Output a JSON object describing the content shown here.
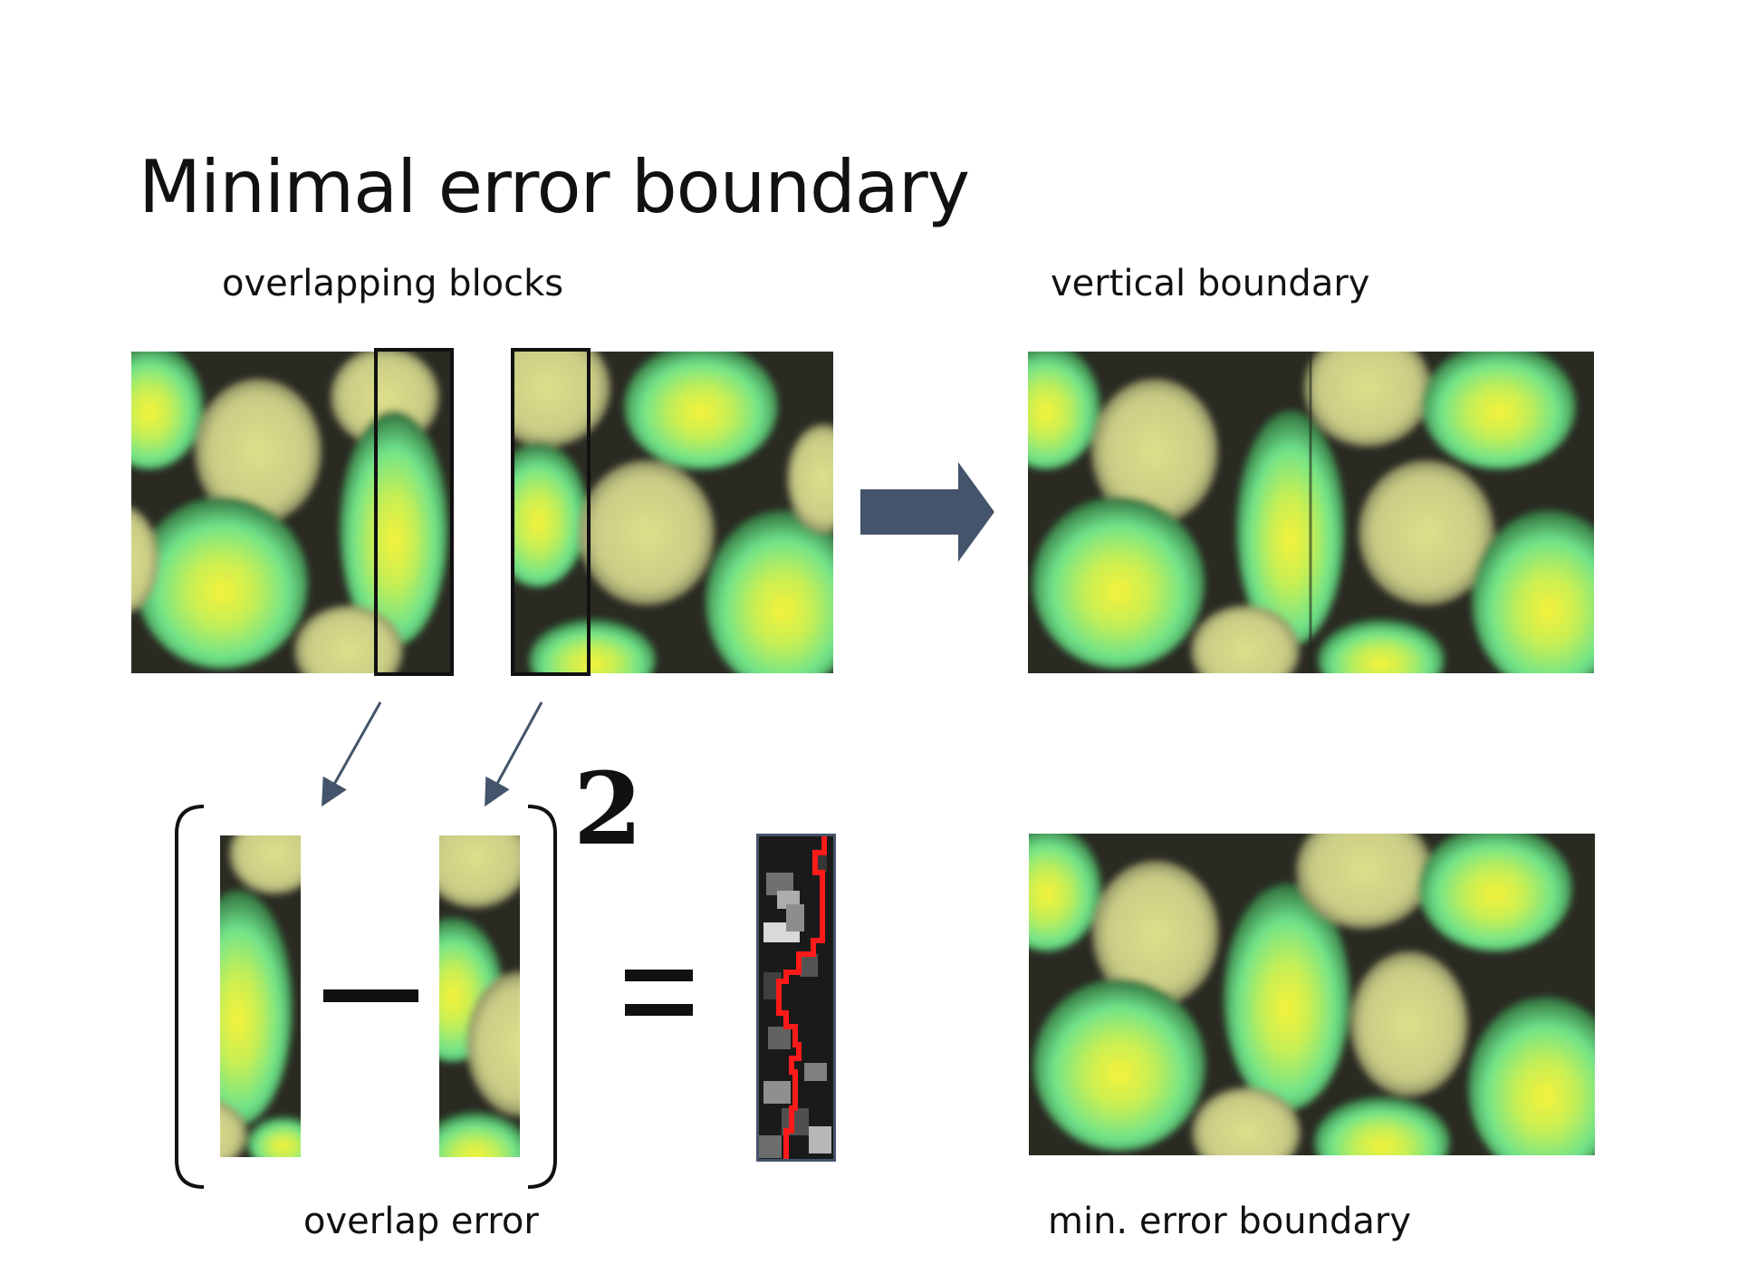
{
  "slide": {
    "title": "Minimal error boundary",
    "labels": {
      "overlapping_blocks": "overlapping blocks",
      "vertical_boundary": "vertical boundary",
      "overlap_error": "overlap error",
      "min_error_boundary": "min. error boundary"
    },
    "formula": {
      "exponent": "2",
      "minus": "–",
      "equals": "="
    },
    "colors": {
      "arrow": "#44546a",
      "boundary_path": "#ff1a1a",
      "texture_dark": "#1f3320",
      "texture_green": "#6fe38a",
      "texture_yellow": "#f5f542",
      "texture_khaki": "#d8db8e"
    },
    "icons": {
      "right_arrow": "block-arrow-right",
      "pointer_arrows": "thin-diagonal-arrows"
    }
  }
}
